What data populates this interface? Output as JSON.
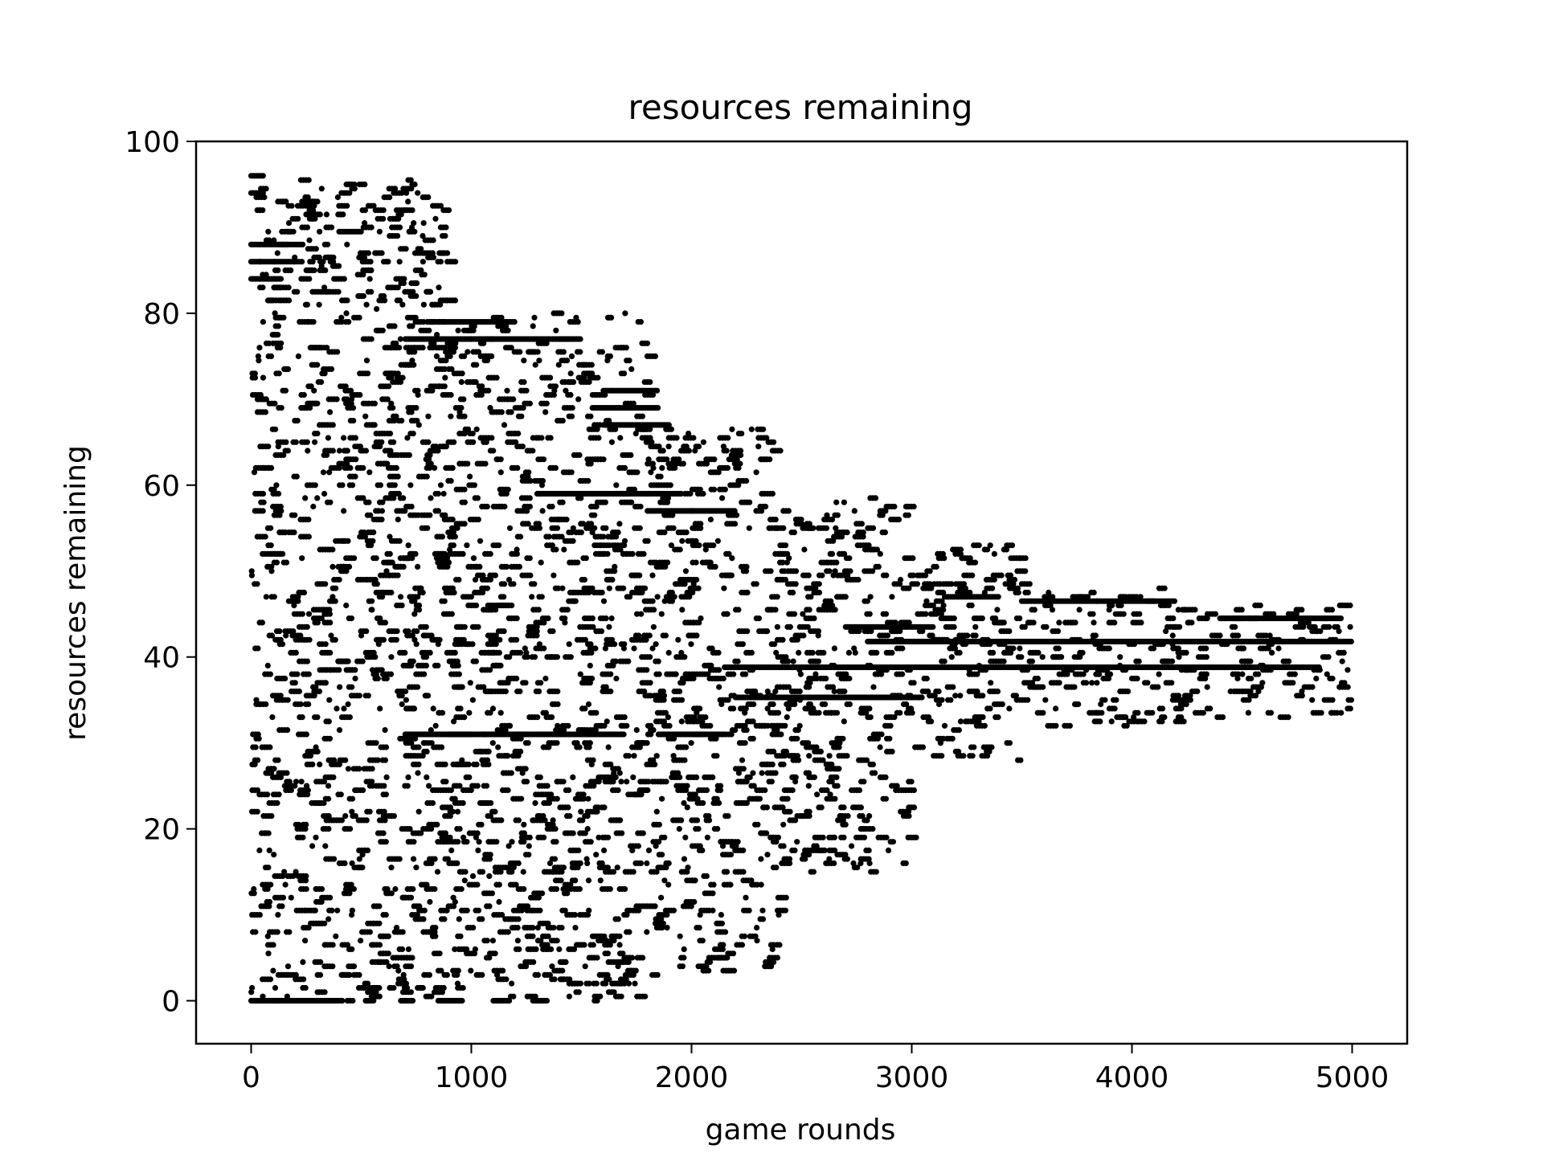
{
  "chart_data": {
    "type": "scatter",
    "title": "resources remaining",
    "xlabel": "game rounds",
    "ylabel": "resources remaining",
    "xlim": [
      -250,
      5250
    ],
    "ylim": [
      -5,
      100
    ],
    "xticks": [
      0,
      1000,
      2000,
      3000,
      4000,
      5000
    ],
    "yticks": [
      0,
      20,
      40,
      60,
      80,
      100
    ],
    "grid": false,
    "legend": "none",
    "marker_color": "#000000",
    "runs": [
      {
        "x0": 0,
        "x1": 420,
        "y": 0
      },
      {
        "x0": 520,
        "x1": 560,
        "y": 0
      },
      {
        "x0": 680,
        "x1": 740,
        "y": 0
      },
      {
        "x0": 850,
        "x1": 960,
        "y": 0
      },
      {
        "x0": 1100,
        "x1": 1180,
        "y": 0
      },
      {
        "x0": 1280,
        "x1": 1350,
        "y": 0
      },
      {
        "x0": 0,
        "x1": 60,
        "y": 96
      },
      {
        "x0": 0,
        "x1": 60,
        "y": 94
      },
      {
        "x0": 0,
        "x1": 240,
        "y": 88
      },
      {
        "x0": 0,
        "x1": 200,
        "y": 86
      },
      {
        "x0": 0,
        "x1": 140,
        "y": 84
      },
      {
        "x0": 250,
        "x1": 320,
        "y": 91.5
      },
      {
        "x0": 400,
        "x1": 500,
        "y": 89.5
      },
      {
        "x0": 700,
        "x1": 1000,
        "y": 77
      },
      {
        "x0": 800,
        "x1": 1200,
        "y": 79
      },
      {
        "x0": 1000,
        "x1": 1500,
        "y": 77
      },
      {
        "x0": 1600,
        "x1": 1850,
        "y": 71
      },
      {
        "x0": 1550,
        "x1": 1850,
        "y": 69
      },
      {
        "x0": 1600,
        "x1": 1900,
        "y": 67
      },
      {
        "x0": 1300,
        "x1": 1950,
        "y": 59
      },
      {
        "x0": 1800,
        "x1": 2200,
        "y": 57
      },
      {
        "x0": 700,
        "x1": 1000,
        "y": 31
      },
      {
        "x0": 900,
        "x1": 1700,
        "y": 31
      },
      {
        "x0": 1850,
        "x1": 2150,
        "y": 31
      },
      {
        "x0": 2200,
        "x1": 3050,
        "y": 35.3
      },
      {
        "x0": 2150,
        "x1": 4850,
        "y": 38.8
      },
      {
        "x0": 2800,
        "x1": 5000,
        "y": 41.8
      },
      {
        "x0": 2700,
        "x1": 3100,
        "y": 43.5
      },
      {
        "x0": 3500,
        "x1": 4200,
        "y": 46.5
      },
      {
        "x0": 4400,
        "x1": 4950,
        "y": 44.5
      },
      {
        "x0": 3150,
        "x1": 3400,
        "y": 47
      }
    ],
    "scatter_bands": [
      {
        "x0": 0,
        "x1": 900,
        "y0": 0,
        "y1": 96
      },
      {
        "x0": 900,
        "x1": 1800,
        "y0": 0,
        "y1": 80
      },
      {
        "x0": 1800,
        "x1": 2400,
        "y0": 3,
        "y1": 67
      },
      {
        "x0": 2400,
        "x1": 3000,
        "y0": 15,
        "y1": 59
      },
      {
        "x0": 3000,
        "x1": 3500,
        "y0": 28,
        "y1": 53
      },
      {
        "x0": 3500,
        "x1": 4200,
        "y0": 32,
        "y1": 48
      },
      {
        "x0": 4200,
        "x1": 5000,
        "y0": 33,
        "y1": 46
      }
    ]
  }
}
